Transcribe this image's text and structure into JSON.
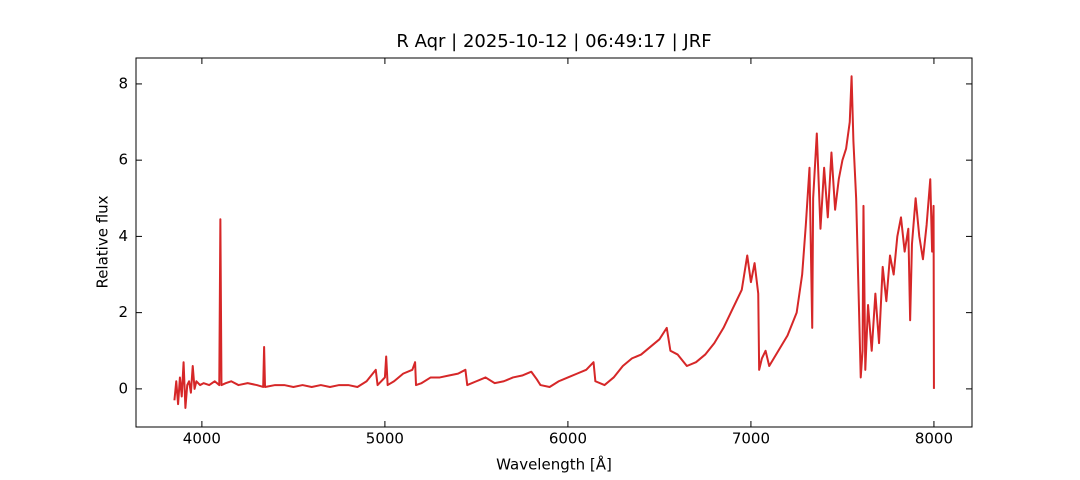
{
  "chart_data": {
    "type": "line",
    "title": "R Aqr | 2025-10-12 | 06:49:17 | JRF",
    "x_label": "Wavelength [Å]",
    "y_label": "Relative flux",
    "xlim": [
      3640,
      8208
    ],
    "ylim": [
      -1.0,
      8.68
    ],
    "xticks": [
      4000,
      5000,
      6000,
      7000,
      8000
    ],
    "yticks": [
      0,
      2,
      4,
      6,
      8
    ],
    "grid": false,
    "x": [
      3850,
      3860,
      3870,
      3880,
      3890,
      3900,
      3910,
      3920,
      3930,
      3940,
      3950,
      3960,
      3970,
      3990,
      4010,
      4040,
      4070,
      4095,
      4101,
      4107,
      4130,
      4160,
      4200,
      4250,
      4300,
      4335,
      4340,
      4345,
      4400,
      4450,
      4500,
      4550,
      4600,
      4650,
      4700,
      4750,
      4800,
      4850,
      4900,
      4950,
      4960,
      5000,
      5007,
      5015,
      5050,
      5100,
      5150,
      5165,
      5170,
      5200,
      5250,
      5300,
      5350,
      5400,
      5440,
      5450,
      5500,
      5550,
      5600,
      5650,
      5700,
      5750,
      5800,
      5830,
      5850,
      5900,
      5950,
      6000,
      6050,
      6100,
      6140,
      6150,
      6200,
      6250,
      6300,
      6350,
      6400,
      6450,
      6500,
      6540,
      6560,
      6600,
      6650,
      6700,
      6750,
      6800,
      6850,
      6900,
      6950,
      6980,
      7000,
      7020,
      7040,
      7045,
      7060,
      7080,
      7100,
      7150,
      7200,
      7250,
      7280,
      7300,
      7320,
      7335,
      7340,
      7360,
      7380,
      7400,
      7420,
      7440,
      7460,
      7480,
      7500,
      7520,
      7540,
      7550,
      7560,
      7575,
      7590,
      7600,
      7610,
      7615,
      7625,
      7640,
      7660,
      7680,
      7700,
      7720,
      7740,
      7760,
      7780,
      7800,
      7820,
      7840,
      7860,
      7870,
      7880,
      7900,
      7920,
      7940,
      7960,
      7980,
      7990,
      7998,
      8000
    ],
    "series": [
      {
        "name": "R Aqr",
        "color": "#d62728",
        "values": [
          -0.3,
          0.2,
          -0.4,
          0.3,
          -0.2,
          0.7,
          -0.5,
          0.1,
          0.2,
          -0.1,
          0.6,
          0.0,
          0.2,
          0.1,
          0.15,
          0.1,
          0.2,
          0.1,
          4.45,
          0.1,
          0.15,
          0.2,
          0.1,
          0.15,
          0.1,
          0.05,
          1.1,
          0.05,
          0.1,
          0.1,
          0.05,
          0.1,
          0.05,
          0.1,
          0.05,
          0.1,
          0.1,
          0.05,
          0.2,
          0.5,
          0.1,
          0.3,
          0.85,
          0.1,
          0.2,
          0.4,
          0.5,
          0.7,
          0.1,
          0.15,
          0.3,
          0.3,
          0.35,
          0.4,
          0.5,
          0.1,
          0.2,
          0.3,
          0.15,
          0.2,
          0.3,
          0.35,
          0.45,
          0.25,
          0.1,
          0.05,
          0.2,
          0.3,
          0.4,
          0.5,
          0.7,
          0.2,
          0.1,
          0.3,
          0.6,
          0.8,
          0.9,
          1.1,
          1.3,
          1.6,
          1.0,
          0.9,
          0.6,
          0.7,
          0.9,
          1.2,
          1.6,
          2.1,
          2.6,
          3.5,
          2.8,
          3.3,
          2.5,
          0.5,
          0.8,
          1.0,
          0.6,
          1.0,
          1.4,
          2.0,
          3.0,
          4.3,
          5.8,
          1.6,
          5.0,
          6.7,
          4.2,
          5.8,
          4.5,
          6.2,
          4.7,
          5.5,
          6.0,
          6.3,
          7.0,
          8.2,
          6.5,
          5.0,
          2.2,
          0.3,
          1.0,
          4.8,
          0.5,
          2.2,
          1.0,
          2.5,
          1.2,
          3.2,
          2.3,
          3.5,
          3.0,
          4.0,
          4.5,
          3.6,
          4.2,
          1.8,
          3.8,
          5.0,
          4.0,
          3.4,
          4.3,
          5.5,
          3.6,
          4.8,
          0.0
        ]
      }
    ]
  }
}
